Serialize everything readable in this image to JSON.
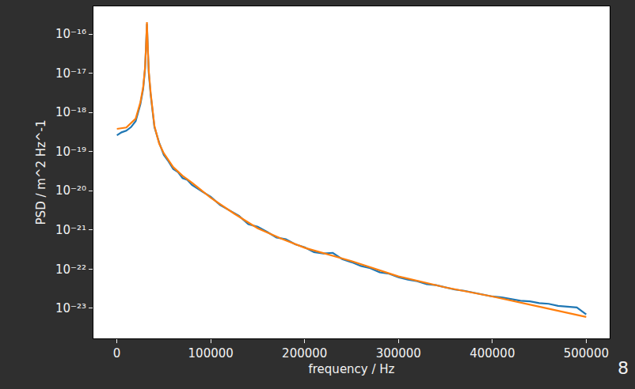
{
  "chart_data": {
    "type": "line",
    "x_label": "frequency / Hz",
    "y_label": "PSD / m^2 Hz^-1",
    "log": "y",
    "grid": false,
    "annotations": [
      "8"
    ],
    "xlim": [
      -25000,
      525000
    ],
    "xticks": [
      0,
      100000,
      200000,
      300000,
      400000,
      500000
    ],
    "ylim": [
      1.7e-24,
      5.1e-16
    ],
    "yticks": [
      {
        "value": 1e-16,
        "label": "10⁻¹⁶"
      },
      {
        "value": 1e-17,
        "label": "10⁻¹⁷"
      },
      {
        "value": 1e-18,
        "label": "10⁻¹⁸"
      },
      {
        "value": 1e-19,
        "label": "10⁻¹⁹"
      },
      {
        "value": 1e-20,
        "label": "10⁻²⁰"
      },
      {
        "value": 1e-21,
        "label": "10⁻²¹"
      },
      {
        "value": 1e-22,
        "label": "10⁻²²"
      },
      {
        "value": 1e-23,
        "label": "10⁻²³"
      }
    ],
    "series": [
      {
        "color": "#1f77b4",
        "x": [
          0,
          5000,
          10000,
          15000,
          20000,
          25000,
          28000,
          30000,
          31000,
          32000,
          33000,
          34000,
          36000,
          40000,
          45000,
          50000,
          55000,
          60000,
          65000,
          70000,
          75000,
          80000,
          90000,
          100000,
          110000,
          120000,
          130000,
          140000,
          150000,
          160000,
          170000,
          180000,
          190000,
          200000,
          210000,
          220000,
          230000,
          240000,
          250000,
          260000,
          270000,
          280000,
          290000,
          300000,
          310000,
          320000,
          330000,
          340000,
          350000,
          360000,
          370000,
          380000,
          390000,
          400000,
          410000,
          420000,
          430000,
          440000,
          450000,
          460000,
          470000,
          480000,
          490000,
          500000
        ],
        "values": [
          2.6e-19,
          3.1e-19,
          3.4e-19,
          4.2e-19,
          6e-19,
          1.6e-18,
          4e-18,
          1.3e-17,
          4.8e-17,
          1.8e-16,
          3.8e-17,
          1e-17,
          2.8e-18,
          4.2e-19,
          1.7e-19,
          8.2e-20,
          5.6e-20,
          3.6e-20,
          3e-20,
          2.1e-20,
          1.9e-20,
          1.4e-20,
          9.8e-21,
          7e-21,
          4.3e-21,
          3.1e-21,
          2.3e-21,
          1.4e-21,
          1.2e-21,
          8.9e-22,
          6.4e-22,
          5.8e-22,
          4.3e-22,
          3.6e-22,
          2.7e-22,
          2.5e-22,
          2.6e-22,
          1.8e-22,
          1.5e-22,
          1.2e-22,
          1.05e-22,
          8.3e-23,
          7.6e-23,
          6.2e-23,
          5.4e-23,
          4.9e-23,
          4.1e-23,
          3.9e-23,
          3.4e-23,
          3e-23,
          2.8e-23,
          2.5e-23,
          2.2e-23,
          2e-23,
          1.9e-23,
          1.7e-23,
          1.55e-23,
          1.5e-23,
          1.35e-23,
          1.3e-23,
          1.15e-23,
          1.1e-23,
          1.05e-23,
          7e-24
        ]
      },
      {
        "color": "#ff7f0e",
        "x": [
          0,
          10000,
          20000,
          25000,
          28000,
          30000,
          31000,
          32000,
          33000,
          34000,
          36000,
          40000,
          45000,
          50000,
          60000,
          70000,
          80000,
          100000,
          125000,
          150000,
          175000,
          200000,
          250000,
          300000,
          350000,
          400000,
          450000,
          500000
        ],
        "values": [
          3.8e-19,
          4.1e-19,
          6.9e-19,
          1.8e-18,
          4.4e-18,
          1.4e-17,
          4.5e-17,
          2e-16,
          4.1e-17,
          1.1e-17,
          3.1e-18,
          4.5e-19,
          1.6e-19,
          9e-20,
          4e-20,
          2.4e-20,
          1.6e-20,
          6.6e-21,
          2.6e-21,
          1.1e-21,
          6e-22,
          3.5e-22,
          1.6e-22,
          6.5e-23,
          3.4e-23,
          2e-23,
          1.1e-23,
          6e-24
        ]
      }
    ]
  }
}
